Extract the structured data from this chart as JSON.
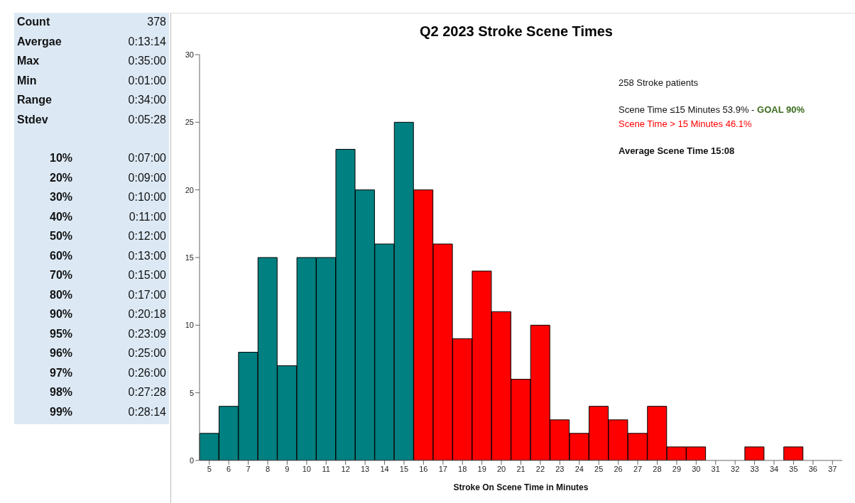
{
  "chart_data": {
    "type": "bar",
    "title": "Q2 2023 Stroke Scene Times",
    "xlabel": "Stroke On Scene Time in Minutes",
    "categories": [
      "5",
      "6",
      "7",
      "8",
      "9",
      "10",
      "11",
      "12",
      "13",
      "14",
      "15",
      "16",
      "17",
      "18",
      "19",
      "20",
      "21",
      "22",
      "23",
      "24",
      "25",
      "26",
      "27",
      "28",
      "29",
      "30",
      "31",
      "32",
      "33",
      "34",
      "35",
      "36",
      "37"
    ],
    "values": [
      2,
      4,
      8,
      15,
      7,
      15,
      15,
      23,
      20,
      16,
      25,
      20,
      16,
      9,
      14,
      11,
      6,
      10,
      3,
      2,
      4,
      3,
      2,
      4,
      1,
      1,
      0,
      0,
      1,
      0,
      1,
      0,
      0
    ],
    "colors": [
      "#008080",
      "#008080",
      "#008080",
      "#008080",
      "#008080",
      "#008080",
      "#008080",
      "#008080",
      "#008080",
      "#008080",
      "#008080",
      "#ff0000",
      "#ff0000",
      "#ff0000",
      "#ff0000",
      "#ff0000",
      "#ff0000",
      "#ff0000",
      "#ff0000",
      "#ff0000",
      "#ff0000",
      "#ff0000",
      "#ff0000",
      "#ff0000",
      "#ff0000",
      "#ff0000",
      "#ff0000",
      "#ff0000",
      "#ff0000",
      "#ff0000",
      "#ff0000",
      "#ff0000",
      "#ff0000"
    ],
    "ylim": [
      0,
      30
    ],
    "yticks": [
      0,
      5,
      10,
      15,
      20,
      25,
      30
    ],
    "grid": false,
    "annotations": [
      "258 Stroke patients",
      "Scene Time ≤15 Minutes 53.9% -",
      "GOAL 90%",
      "Scene Time > 15 Minutes 46.1%",
      "Average Scene Time 15:08",
      "Count",
      "378",
      "Avergae",
      "0:13:14",
      "Max",
      "0:35:00",
      "Min",
      "0:01:00",
      "Range",
      "0:34:00",
      "Stdev",
      "0:05:28",
      "10%",
      "0:07:00",
      "20%",
      "0:09:00",
      "30%",
      "0:10:00",
      "40%",
      "0:11:00",
      "50%",
      "0:12:00",
      "60%",
      "0:13:00",
      "70%",
      "0:15:00",
      "80%",
      "0:17:00",
      "90%",
      "0:20:18",
      "95%",
      "0:23:09",
      "96%",
      "0:25:00",
      "97%",
      "0:26:00",
      "98%",
      "0:27:28",
      "99%",
      "0:28:14"
    ]
  }
}
